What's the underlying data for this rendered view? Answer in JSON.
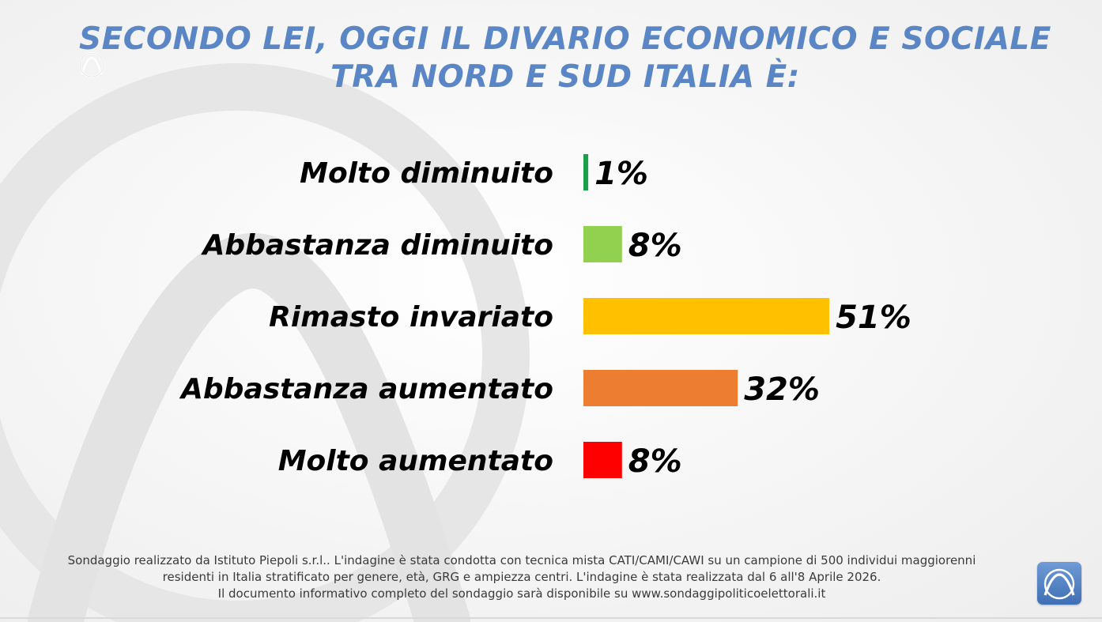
{
  "title": {
    "line1": "SECONDO LEI, OGGI IL DIVARIO ECONOMICO E SOCIALE",
    "line2": "TRA NORD E SUD ITALIA È:"
  },
  "chart_data": {
    "type": "bar",
    "orientation": "horizontal",
    "title": "SECONDO LEI, OGGI IL DIVARIO ECONOMICO E SOCIALE TRA NORD E SUD ITALIA È:",
    "unit": "%",
    "categories": [
      "Molto diminuito",
      "Abbastanza diminuito",
      "Rimasto invariato",
      "Abbastanza aumentato",
      "Molto aumentato"
    ],
    "values": [
      1,
      8,
      51,
      32,
      8
    ],
    "value_labels": [
      "1%",
      "8%",
      "51%",
      "32%",
      "8%"
    ],
    "colors": [
      "#1aa04a",
      "#92d050",
      "#ffc000",
      "#ed7d31",
      "#ff0000"
    ],
    "xlim": [
      0,
      100
    ],
    "grid": false,
    "axes_visible": false
  },
  "footer": {
    "line1": "Sondaggio realizzato da Istituto Piepoli s.r.l.. L'indagine è stata condotta con tecnica mista CATI/CAMI/CAWI su un campione di 500 individui maggiorenni",
    "line2": "residenti in Italia stratificato per genere, età, GRG e ampiezza centri. L'indagine è stata realizzata dal 6 all'8 Aprile 2026.",
    "line3": "Il documento informativo completo del sondaggio sarà disponibile su www.sondaggipoliticoelettorali.it"
  },
  "colors": {
    "title": "#5a86c5",
    "logo": "#4a78bd"
  },
  "icons": {
    "top_logo": "piepoli-logo-outline-icon",
    "brand_logo": "piepoli-logo-icon"
  }
}
